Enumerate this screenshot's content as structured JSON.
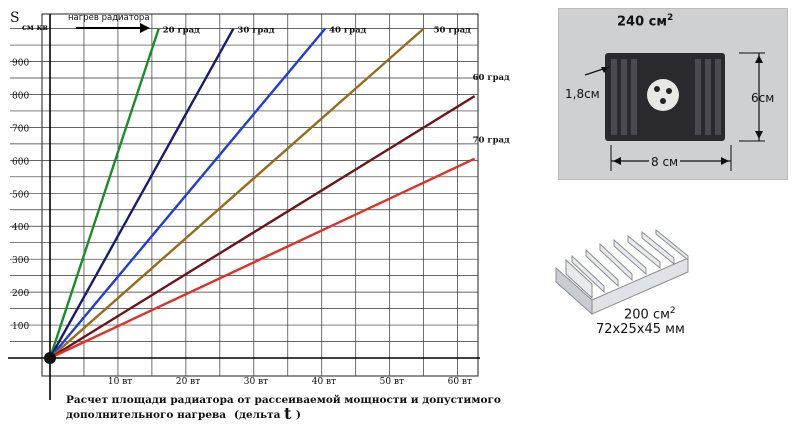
{
  "chart_data": {
    "type": "line",
    "ylabel": "S",
    "ylabel_sub": "см кв",
    "arrow_label": "нагрев радиатора",
    "y_ticks": [
      100,
      200,
      300,
      400,
      500,
      600,
      700,
      800,
      900
    ],
    "x_ticks": [
      {
        "value": 10,
        "label": "10 вт"
      },
      {
        "value": 20,
        "label": "20 вт"
      },
      {
        "value": 30,
        "label": "30 вт"
      },
      {
        "value": 40,
        "label": "40 вт"
      },
      {
        "value": 50,
        "label": "50 вт"
      },
      {
        "value": 60,
        "label": "60 вт"
      }
    ],
    "xlim": [
      0,
      63
    ],
    "ylim": [
      0,
      1020
    ],
    "grid": true,
    "series": [
      {
        "name": "20 град",
        "color": "#1f8a2a",
        "x": [
          0,
          16
        ],
        "y": [
          0,
          1000
        ]
      },
      {
        "name": "30 град",
        "color": "#1b1b6e",
        "x": [
          0,
          27
        ],
        "y": [
          0,
          1000
        ]
      },
      {
        "name": "40 град",
        "color": "#1f3fd0",
        "x": [
          0,
          40.5
        ],
        "y": [
          0,
          1000
        ]
      },
      {
        "name": "50 град",
        "color": "#9a6a1c",
        "x": [
          0,
          55
        ],
        "y": [
          0,
          1000
        ]
      },
      {
        "name": "60 град",
        "color": "#6e1418",
        "x": [
          0,
          62.5
        ],
        "y": [
          0,
          795
        ]
      },
      {
        "name": "70 град",
        "color": "#e0302a",
        "x": [
          0,
          62.5
        ],
        "y": [
          0,
          605
        ]
      }
    ],
    "caption_line1": "Расчет площади радиатора от рассеиваемой мощности и допустимого",
    "caption_line2": "дополнительного нагрева",
    "caption_delta": "(дельта",
    "caption_t": "t",
    "caption_close": ")"
  },
  "photo_large": {
    "area": "240 см",
    "sup": "2",
    "fin_label": "1,8см",
    "height_label": "6см",
    "width_label": "8 см"
  },
  "photo_small": {
    "area": "200 см",
    "sup": "2",
    "dims": "72x25x45 мм"
  }
}
